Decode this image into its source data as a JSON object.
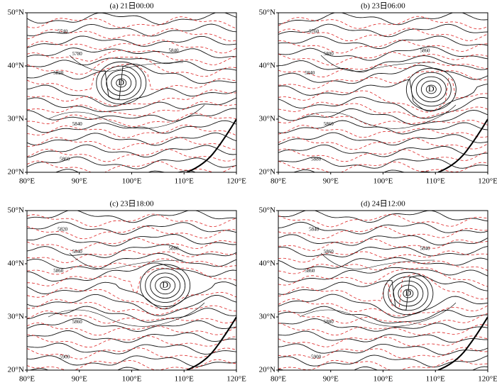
{
  "panels": [
    {
      "title": "(a) 21日00:00",
      "contour_labels": [
        "5740",
        "5780",
        "5820",
        "5840",
        "5840",
        "5860"
      ],
      "low_label": "D"
    },
    {
      "title": "(b) 23日06:00",
      "contour_labels": [
        "5760",
        "5800",
        "5840",
        "5860",
        "5860",
        "5880"
      ],
      "low_label": "D"
    },
    {
      "title": "(c) 23日18:00",
      "contour_labels": [
        "5820",
        "5840",
        "5860",
        "5860",
        "5880",
        "5900"
      ],
      "low_label": "D"
    },
    {
      "title": "(d) 24日12:00",
      "contour_labels": [
        "5840",
        "5860",
        "5860",
        "5880",
        "5840",
        "5900"
      ],
      "low_label": "D"
    }
  ],
  "lon_labels": [
    "80°E",
    "90°E",
    "100°E",
    "110°E",
    "120°E"
  ],
  "lat_labels": [
    "50°N",
    "40°N",
    "30°N",
    "20°N"
  ]
}
